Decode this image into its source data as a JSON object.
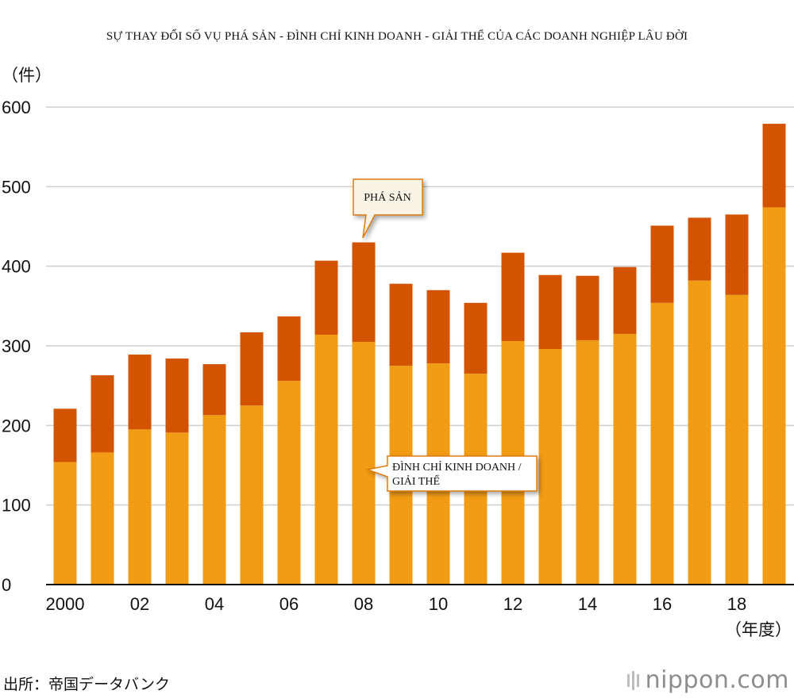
{
  "chart_data": {
    "type": "bar",
    "stacked": true,
    "title": "SỰ THAY ĐỔI SỐ VỤ PHÁ SẢN - ĐÌNH CHỈ KINH DOANH - GIẢI THỂ CỦA CÁC DOANH NGHIỆP LÂU ĐỜI",
    "ylabel": "（件）",
    "xlabel": "（年度）",
    "ylim": [
      0,
      600
    ],
    "yticks": [
      "0",
      "100",
      "200",
      "300",
      "400",
      "500",
      "600"
    ],
    "x": [
      2000,
      2001,
      2002,
      2003,
      2004,
      2005,
      2006,
      2007,
      2008,
      2009,
      2010,
      2011,
      2012,
      2013,
      2014,
      2015,
      2016,
      2017,
      2018,
      2019
    ],
    "xtick_labels": [
      "2000",
      "",
      "02",
      "",
      "04",
      "",
      "06",
      "",
      "08",
      "",
      "10",
      "",
      "12",
      "",
      "14",
      "",
      "16",
      "",
      "18",
      ""
    ],
    "series": [
      {
        "name": "ĐÌNH CHỈ KINH DOANH / GIẢI THỂ",
        "color": "#f29b14",
        "values": [
          154,
          166,
          195,
          191,
          213,
          225,
          256,
          314,
          305,
          275,
          278,
          265,
          306,
          296,
          307,
          315,
          354,
          382,
          364,
          474
        ]
      },
      {
        "name": "PHÁ SẢN",
        "color": "#d35400",
        "values": [
          67,
          97,
          94,
          93,
          64,
          92,
          81,
          93,
          125,
          103,
          92,
          89,
          111,
          93,
          81,
          84,
          97,
          79,
          101,
          105
        ]
      }
    ],
    "grid": true,
    "legend": "callouts"
  },
  "callouts": {
    "bankruptcy": "PHÁ SẢN",
    "suspension_line1": "ĐÌNH CHỈ KINH DOANH /",
    "suspension_line2": "GIẢI THỂ"
  },
  "source": "出所：帝国データバンク",
  "logo": "nippon.com"
}
